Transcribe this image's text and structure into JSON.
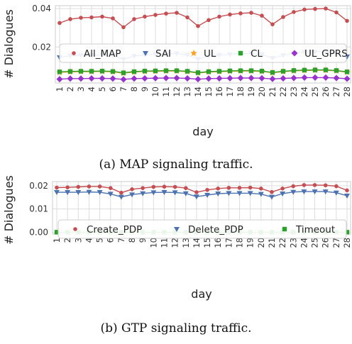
{
  "captions": {
    "a": "(a) MAP signaling traffic.",
    "b": "(b) GTP signaling traffic."
  },
  "chart_data": [
    {
      "type": "line",
      "xlabel": "day",
      "ylabel": "# Dialogues",
      "x": [
        1,
        2,
        3,
        4,
        5,
        6,
        7,
        8,
        9,
        10,
        11,
        12,
        13,
        14,
        15,
        16,
        17,
        18,
        19,
        20,
        21,
        22,
        23,
        24,
        25,
        26,
        27,
        28
      ],
      "yticks": [
        "0.02",
        "0.04"
      ],
      "ylim": [
        0.0013,
        0.0415
      ],
      "grid": true,
      "legend_position": "middle",
      "series": [
        {
          "name": "All_MAP",
          "color": "#c44e52",
          "marker": "circle",
          "values": [
            0.0325,
            0.0345,
            0.0352,
            0.0354,
            0.0358,
            0.0349,
            0.0303,
            0.0345,
            0.0358,
            0.0367,
            0.0374,
            0.0378,
            0.0354,
            0.0309,
            0.034,
            0.0358,
            0.0369,
            0.0375,
            0.0378,
            0.0363,
            0.0318,
            0.0356,
            0.0382,
            0.0395,
            0.0398,
            0.04,
            0.038,
            0.0336
          ]
        },
        {
          "name": "SAI",
          "color": "#4c72b0",
          "marker": "triangle-down",
          "values": [
            0.0146,
            0.0155,
            0.0157,
            0.0157,
            0.0159,
            0.0155,
            0.0136,
            0.0153,
            0.0159,
            0.0162,
            0.0165,
            0.0166,
            0.0159,
            0.0137,
            0.0152,
            0.0158,
            0.0162,
            0.0165,
            0.0167,
            0.0161,
            0.0142,
            0.0157,
            0.0168,
            0.0174,
            0.0175,
            0.0176,
            0.0167,
            0.015
          ]
        },
        {
          "name": "UL",
          "color": "#ff9f1c",
          "marker": "star",
          "values": [
            0.0068,
            0.0071,
            0.0072,
            0.0072,
            0.0073,
            0.0071,
            0.0064,
            0.007,
            0.0073,
            0.0074,
            0.0075,
            0.0075,
            0.0072,
            0.0065,
            0.007,
            0.0072,
            0.0074,
            0.0075,
            0.0075,
            0.0073,
            0.0066,
            0.0072,
            0.0076,
            0.0078,
            0.0079,
            0.0079,
            0.0076,
            0.0069
          ]
        },
        {
          "name": "CL",
          "color": "#2ca02c",
          "marker": "square",
          "values": [
            0.0071,
            0.0073,
            0.0074,
            0.0074,
            0.0075,
            0.0073,
            0.0066,
            0.0072,
            0.0075,
            0.0076,
            0.0077,
            0.0077,
            0.0074,
            0.0067,
            0.0072,
            0.0074,
            0.0076,
            0.0077,
            0.0077,
            0.0075,
            0.0068,
            0.0074,
            0.0078,
            0.008,
            0.0081,
            0.0081,
            0.0078,
            0.0071
          ]
        },
        {
          "name": "UL_GPRS",
          "color": "#9932cc",
          "marker": "diamond",
          "values": [
            0.0033,
            0.0036,
            0.0036,
            0.0037,
            0.0037,
            0.0036,
            0.0032,
            0.0036,
            0.0037,
            0.0038,
            0.0039,
            0.0039,
            0.0037,
            0.0033,
            0.0036,
            0.0037,
            0.0038,
            0.0039,
            0.0039,
            0.0038,
            0.0034,
            0.0037,
            0.0039,
            0.0041,
            0.0041,
            0.0041,
            0.0039,
            0.0035
          ]
        }
      ]
    },
    {
      "type": "line",
      "xlabel": "day",
      "ylabel": "# Dialogues",
      "x": [
        1,
        2,
        3,
        4,
        5,
        6,
        7,
        8,
        9,
        10,
        11,
        12,
        13,
        14,
        15,
        16,
        17,
        18,
        19,
        20,
        21,
        22,
        23,
        24,
        25,
        26,
        27,
        28
      ],
      "yticks": [
        "0.00",
        "0.01",
        "0.02"
      ],
      "ylim": [
        -0.0008,
        0.0218
      ],
      "grid": true,
      "legend_position": "middle",
      "series": [
        {
          "name": "Create_PDP",
          "color": "#c44e52",
          "marker": "circle",
          "values": [
            0.0192,
            0.0193,
            0.0195,
            0.0197,
            0.0197,
            0.019,
            0.017,
            0.0185,
            0.019,
            0.0195,
            0.0196,
            0.0195,
            0.019,
            0.0172,
            0.0182,
            0.0188,
            0.0191,
            0.0191,
            0.0192,
            0.0188,
            0.0173,
            0.0188,
            0.0198,
            0.0203,
            0.0203,
            0.0202,
            0.0198,
            0.018
          ]
        },
        {
          "name": "Delete_PDP",
          "color": "#4c72b0",
          "marker": "triangle-down",
          "values": [
            0.0172,
            0.0172,
            0.0172,
            0.0173,
            0.0172,
            0.0165,
            0.0152,
            0.0162,
            0.0167,
            0.0171,
            0.0172,
            0.0171,
            0.0167,
            0.0153,
            0.016,
            0.0166,
            0.0168,
            0.0168,
            0.0168,
            0.0164,
            0.0152,
            0.0166,
            0.0173,
            0.0175,
            0.0175,
            0.0175,
            0.017,
            0.0157
          ]
        },
        {
          "name": "Timeout",
          "color": "#2ca02c",
          "marker": "square",
          "values": [
            0,
            0,
            0,
            0,
            0,
            0,
            0,
            0,
            0,
            0,
            0,
            0,
            0,
            0,
            0,
            0,
            0,
            0,
            0,
            0,
            0,
            0,
            0,
            0,
            0,
            0,
            0,
            0
          ]
        }
      ]
    }
  ]
}
